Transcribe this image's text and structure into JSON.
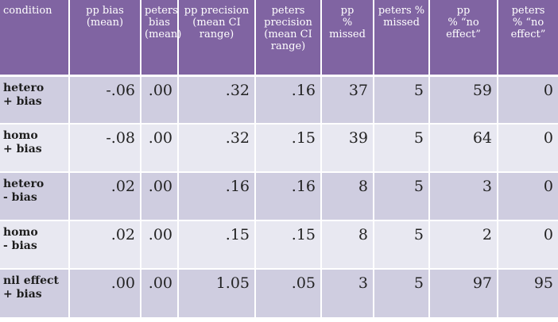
{
  "table": {
    "headers": [
      [
        "condition"
      ],
      [
        "pp bias",
        "(mean)"
      ],
      [
        "peters",
        "bias",
        "(mean)"
      ],
      [
        "pp precision",
        "(mean CI",
        "range)"
      ],
      [
        "peters",
        "precision",
        "(mean CI",
        "range)"
      ],
      [
        "pp",
        "%",
        "missed"
      ],
      [
        "peters %",
        "missed"
      ],
      [
        "pp",
        "% “no",
        "effect”"
      ],
      [
        "peters",
        "% “no",
        "effect”"
      ]
    ],
    "rows": [
      {
        "condition": [
          "hetero",
          "+ bias"
        ],
        "values": [
          "-.06",
          ".00",
          ".32",
          ".16",
          "37",
          "5",
          "59",
          "0"
        ]
      },
      {
        "condition": [
          "homo",
          "+ bias"
        ],
        "values": [
          "-.08",
          ".00",
          ".32",
          ".15",
          "39",
          "5",
          "64",
          "0"
        ]
      },
      {
        "condition": [
          "hetero",
          "- bias"
        ],
        "values": [
          ".02",
          ".00",
          ".16",
          ".16",
          "8",
          "5",
          "3",
          "0"
        ]
      },
      {
        "condition": [
          "homo",
          "- bias"
        ],
        "values": [
          ".02",
          ".00",
          ".15",
          ".15",
          "8",
          "5",
          "2",
          "0"
        ]
      },
      {
        "condition": [
          "nil effect",
          "+ bias"
        ],
        "values": [
          ".00",
          ".00",
          "1.05",
          ".05",
          "3",
          "5",
          "97",
          "95"
        ]
      }
    ]
  },
  "colors": {
    "header_bg": "#8064a2",
    "row_odd_bg": "#cfcde0",
    "row_even_bg": "#e8e8f1"
  }
}
